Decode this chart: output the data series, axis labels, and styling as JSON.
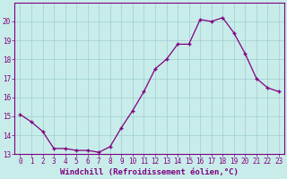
{
  "x": [
    0,
    1,
    2,
    3,
    4,
    5,
    6,
    7,
    8,
    9,
    10,
    11,
    12,
    13,
    14,
    15,
    16,
    17,
    18,
    19,
    20,
    21,
    22,
    23
  ],
  "y": [
    15.1,
    14.7,
    14.2,
    13.3,
    13.3,
    13.2,
    13.2,
    13.1,
    13.4,
    14.4,
    15.3,
    16.3,
    17.5,
    18.0,
    18.8,
    18.8,
    20.1,
    20.0,
    20.2,
    19.4,
    18.3,
    17.0,
    16.5,
    16.3
  ],
  "line_color": "#800080",
  "marker": "+",
  "bg_color": "#c8ecea",
  "grid_color": "#9ecece",
  "xlabel": "Windchill (Refroidissement éolien,°C)",
  "ylim": [
    13,
    21
  ],
  "xlim": [
    -0.5,
    23.5
  ],
  "yticks": [
    13,
    14,
    15,
    16,
    17,
    18,
    19,
    20
  ],
  "xticks": [
    0,
    1,
    2,
    3,
    4,
    5,
    6,
    7,
    8,
    9,
    10,
    11,
    12,
    13,
    14,
    15,
    16,
    17,
    18,
    19,
    20,
    21,
    22,
    23
  ],
  "line_width": 0.9,
  "marker_size": 3.0,
  "tick_fontsize": 5.5,
  "label_fontsize": 6.5,
  "spine_color": "#800080"
}
